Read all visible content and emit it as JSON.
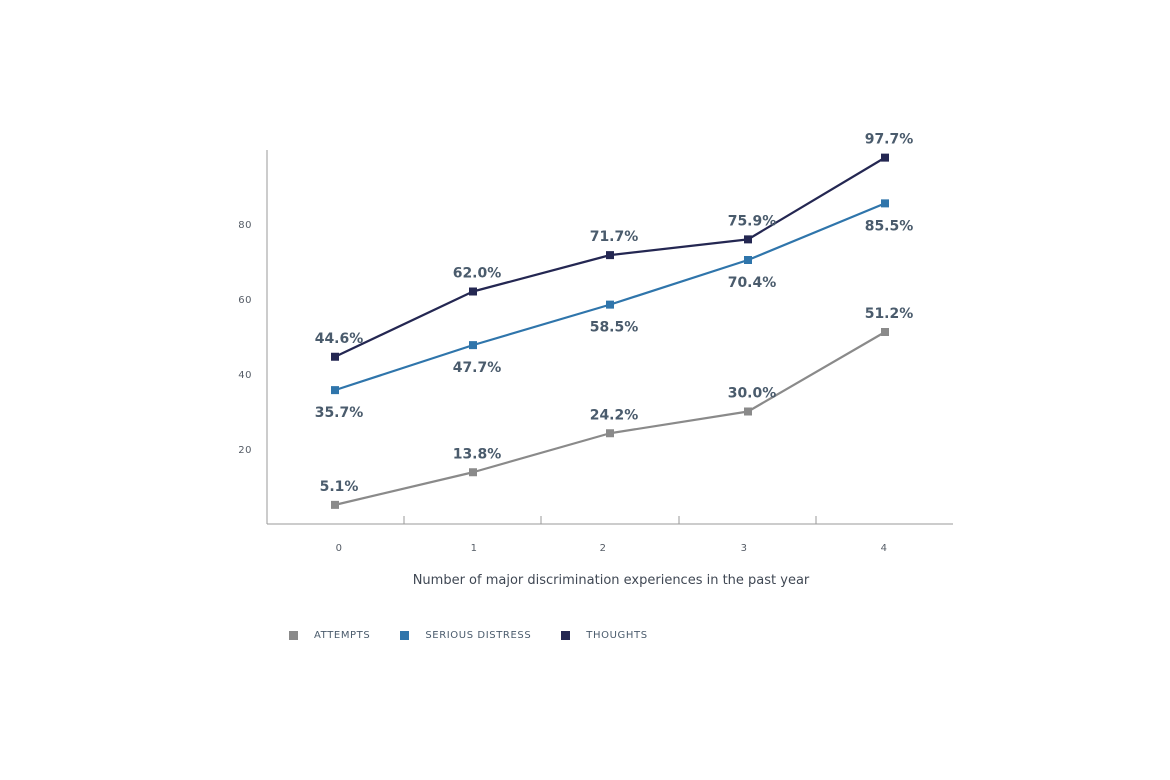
{
  "chart_data": {
    "type": "line",
    "xlabel": "Number of major discrimination experiences in the past year",
    "ylabel": "",
    "x": [
      0,
      1,
      2,
      3,
      4
    ],
    "x_tick_labels": [
      "0",
      "1",
      "2",
      "3",
      "4"
    ],
    "y_ticks": [
      20,
      40,
      60,
      80
    ],
    "ylim": [
      0,
      100
    ],
    "grid": false,
    "legend_position": "bottom-left",
    "series": [
      {
        "name": "ATTEMPTS",
        "color": "#8a8a8a",
        "values": [
          5.1,
          13.8,
          24.2,
          30.0,
          51.2
        ],
        "labels": [
          "5.1%",
          "13.8%",
          "24.2%",
          "30.0%",
          "51.2%"
        ],
        "label_positions": [
          "above",
          "above",
          "above",
          "above",
          "above"
        ]
      },
      {
        "name": "SERIOUS DISTRESS",
        "color": "#2f75ab",
        "values": [
          35.7,
          47.7,
          58.5,
          70.4,
          85.5
        ],
        "labels": [
          "35.7%",
          "47.7%",
          "58.5%",
          "70.4%",
          "85.5%"
        ],
        "label_positions": [
          "below",
          "below",
          "below",
          "below",
          "below"
        ]
      },
      {
        "name": "THOUGHTS",
        "color": "#242752",
        "values": [
          44.6,
          62.0,
          71.7,
          75.9,
          97.7
        ],
        "labels": [
          "44.6%",
          "62.0%",
          "71.7%",
          "75.9%",
          "97.7%"
        ],
        "label_positions": [
          "above",
          "above",
          "above",
          "above",
          "above"
        ]
      }
    ]
  },
  "legend": {
    "items": [
      {
        "label": "ATTEMPTS",
        "color": "#8a8a8a"
      },
      {
        "label": "SERIOUS DISTRESS",
        "color": "#2f75ab"
      },
      {
        "label": "THOUGHTS",
        "color": "#242752"
      }
    ]
  }
}
